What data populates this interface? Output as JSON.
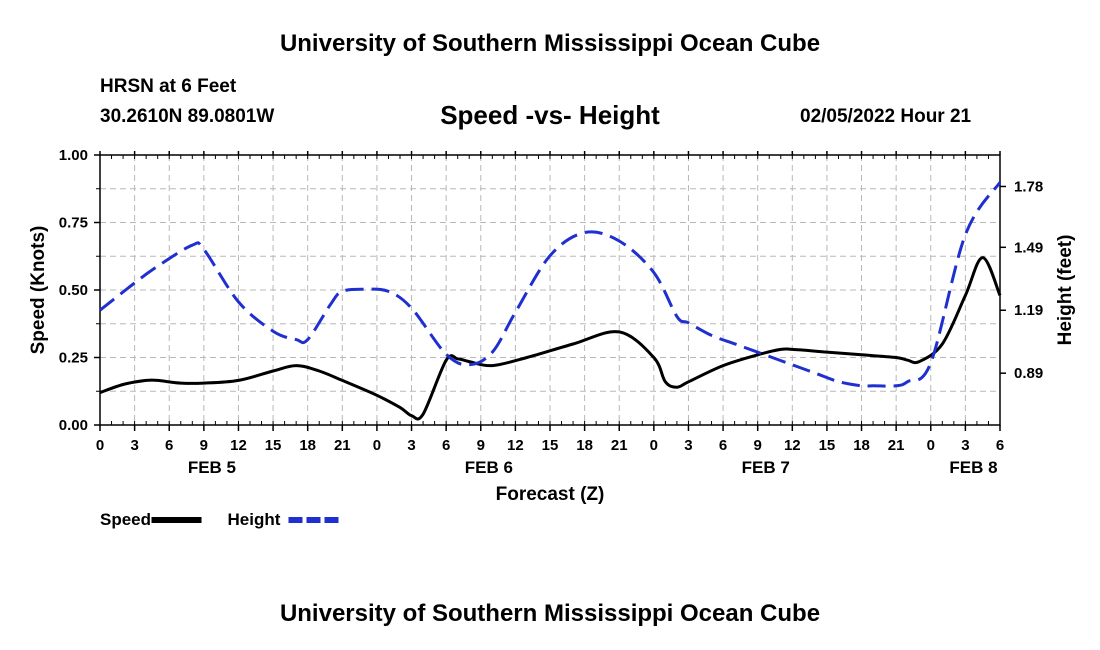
{
  "header": {
    "title_top": "University of Southern Mississippi Ocean Cube",
    "title_bottom": "University of Southern Mississippi Ocean Cube",
    "station": "HRSN at 6 Feet",
    "coords": "30.2610N  89.0801W",
    "subtitle": "Speed -vs- Height",
    "timestamp": "02/05/2022 Hour 21"
  },
  "chart_data": {
    "type": "line",
    "title": "Speed -vs- Height",
    "xlabel": "Forecast (Z)",
    "ylabel_left": "Speed (Knots)",
    "ylabel_right": "Height (feet)",
    "x_hours_range": [
      0,
      78
    ],
    "x_tick_labels": [
      "0",
      "3",
      "6",
      "9",
      "12",
      "15",
      "18",
      "21",
      "0",
      "3",
      "6",
      "9",
      "12",
      "15",
      "18",
      "21",
      "0",
      "3",
      "6",
      "9",
      "12",
      "15",
      "18",
      "21",
      "0",
      "3",
      "6"
    ],
    "day_labels": [
      {
        "label": "FEB 5",
        "hour": 9.7
      },
      {
        "label": "FEB 6",
        "hour": 33.7
      },
      {
        "label": "FEB 7",
        "hour": 57.7
      },
      {
        "label": "FEB 8",
        "hour": 75.7
      }
    ],
    "y_left": {
      "min": 0,
      "max": 1,
      "ticks": [
        "0.00",
        "0.25",
        "0.50",
        "0.75",
        "1.00"
      ]
    },
    "y_right": {
      "min": 0.643,
      "max": 1.93,
      "ticks": [
        0.89,
        1.19,
        1.49,
        1.78
      ],
      "tick_labels": [
        "0.89",
        "1.19",
        "1.49",
        "1.78"
      ]
    },
    "series": [
      {
        "name": "Speed",
        "axis": "left",
        "color": "#000000",
        "dash": "solid",
        "x": [
          0,
          2,
          4,
          5,
          7,
          9,
          12,
          15,
          17,
          19,
          21,
          24,
          26,
          27,
          28,
          30,
          31,
          32,
          34,
          37,
          41,
          45,
          48,
          49,
          50,
          51,
          54,
          57,
          59,
          60,
          63,
          66,
          69,
          70,
          71,
          73,
          75,
          76.5,
          78
        ],
        "values": [
          0.12,
          0.15,
          0.165,
          0.165,
          0.155,
          0.155,
          0.165,
          0.2,
          0.22,
          0.2,
          0.165,
          0.11,
          0.065,
          0.035,
          0.04,
          0.24,
          0.245,
          0.235,
          0.22,
          0.25,
          0.3,
          0.345,
          0.25,
          0.16,
          0.14,
          0.16,
          0.22,
          0.26,
          0.28,
          0.28,
          0.27,
          0.26,
          0.25,
          0.24,
          0.235,
          0.3,
          0.48,
          0.62,
          0.48
        ]
      },
      {
        "name": "Height",
        "axis": "right",
        "color": "#1f2fd0",
        "dash": "dashed",
        "x": [
          0,
          3,
          5,
          8,
          9,
          12,
          15,
          17,
          18,
          20,
          21,
          23,
          25,
          27,
          30,
          32,
          34,
          36,
          39,
          42,
          45,
          48,
          50,
          51,
          53,
          55,
          57,
          59,
          60,
          62,
          64,
          66,
          67,
          69,
          70,
          72,
          75,
          78
        ],
        "values": [
          1.19,
          1.32,
          1.4,
          1.5,
          1.48,
          1.23,
          1.09,
          1.05,
          1.05,
          1.22,
          1.28,
          1.29,
          1.28,
          1.2,
          0.98,
          0.93,
          0.99,
          1.18,
          1.45,
          1.56,
          1.52,
          1.37,
          1.16,
          1.13,
          1.07,
          1.03,
          0.99,
          0.95,
          0.93,
          0.89,
          0.85,
          0.83,
          0.83,
          0.83,
          0.85,
          0.94,
          1.55,
          1.8
        ]
      }
    ],
    "legend": [
      {
        "name": "Speed",
        "color": "#000000",
        "style": "solid"
      },
      {
        "name": "Height",
        "color": "#1f2fd0",
        "style": "dashed"
      }
    ],
    "grid": true
  }
}
